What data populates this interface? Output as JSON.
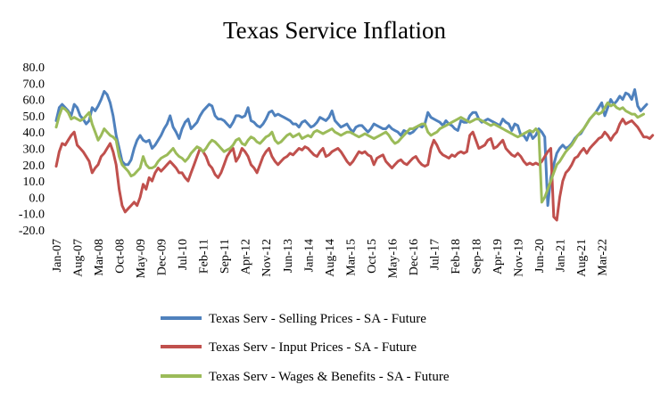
{
  "chart_data": {
    "type": "line",
    "title": "Texas Service Inflation",
    "xlabel": "",
    "ylabel": "",
    "ylim": [
      -20,
      80
    ],
    "yticks": [
      -20,
      -10,
      0,
      10,
      20,
      30,
      40,
      50,
      60,
      70,
      80
    ],
    "ytick_labels": [
      "-20.0",
      "-10.0",
      "0.0",
      "10.0",
      "20.0",
      "30.0",
      "40.0",
      "50.0",
      "60.0",
      "70.0",
      "80.0"
    ],
    "x_start": "Jan-07",
    "x_end": "Sep-22",
    "xtick_labels": [
      "Jan-07",
      "Aug-07",
      "Mar-08",
      "Oct-08",
      "May-09",
      "Dec-09",
      "Jul-10",
      "Feb-11",
      "Sep-11",
      "Apr-12",
      "Nov-12",
      "Jun-13",
      "Jan-14",
      "Aug-14",
      "Mar-15",
      "Oct-15",
      "May-16",
      "Dec-16",
      "Jul-17",
      "Feb-18",
      "Sep-18",
      "Apr-19",
      "Nov-19",
      "Jun-20",
      "Jan-21",
      "Aug-21",
      "Mar-22"
    ],
    "legend_position": "bottom",
    "series": [
      {
        "name": "Texas Serv - Selling Prices - SA - Future",
        "color": "#4F81BD",
        "values": [
          47,
          55,
          57,
          55,
          53,
          50,
          57,
          55,
          50,
          48,
          45,
          47,
          55,
          53,
          56,
          60,
          65,
          63,
          58,
          50,
          38,
          30,
          22,
          20,
          20,
          23,
          30,
          35,
          38,
          35,
          34,
          35,
          30,
          32,
          35,
          38,
          42,
          45,
          50,
          43,
          40,
          36,
          42,
          46,
          48,
          42,
          44,
          46,
          50,
          53,
          55,
          57,
          56,
          50,
          48,
          48,
          47,
          45,
          43,
          46,
          50,
          50,
          49,
          50,
          55,
          47,
          46,
          44,
          43,
          45,
          48,
          52,
          53,
          50,
          51,
          50,
          49,
          48,
          47,
          45,
          45,
          43,
          46,
          47,
          45,
          43,
          44,
          46,
          49,
          48,
          47,
          49,
          53,
          47,
          45,
          43,
          44,
          45,
          42,
          40,
          43,
          44,
          44,
          42,
          40,
          42,
          45,
          44,
          43,
          42,
          42,
          44,
          42,
          41,
          40,
          38,
          41,
          40,
          39,
          40,
          42,
          44,
          43,
          45,
          52,
          49,
          48,
          47,
          46,
          44,
          47,
          45,
          44,
          42,
          41,
          47,
          46,
          46,
          50,
          52,
          52,
          48,
          46,
          47,
          48,
          47,
          46,
          45,
          44,
          48,
          46,
          45,
          41,
          45,
          44,
          38,
          38,
          35,
          40,
          36,
          38,
          42,
          40,
          37,
          -5,
          12,
          20,
          27,
          30,
          32,
          30,
          31,
          33,
          36,
          38,
          39,
          42,
          45,
          48,
          50,
          52,
          55,
          58,
          50,
          55,
          60,
          57,
          59,
          62,
          60,
          64,
          63,
          60,
          66,
          56,
          53,
          55,
          57
        ]
      },
      {
        "name": "Texas Serv - Input Prices - SA - Future",
        "color": "#C0504D",
        "values": [
          19,
          28,
          33,
          32,
          35,
          38,
          40,
          32,
          30,
          28,
          25,
          22,
          15,
          18,
          20,
          25,
          27,
          30,
          33,
          28,
          20,
          5,
          -5,
          -9,
          -7,
          -5,
          -3,
          -5,
          0,
          8,
          5,
          12,
          10,
          15,
          18,
          16,
          18,
          20,
          22,
          20,
          18,
          15,
          15,
          12,
          10,
          15,
          20,
          25,
          30,
          28,
          25,
          20,
          18,
          14,
          12,
          15,
          20,
          25,
          28,
          30,
          22,
          25,
          30,
          28,
          25,
          20,
          18,
          15,
          20,
          25,
          28,
          30,
          25,
          22,
          20,
          22,
          24,
          25,
          27,
          26,
          28,
          30,
          29,
          31,
          30,
          28,
          26,
          25,
          28,
          30,
          25,
          26,
          28,
          29,
          30,
          28,
          25,
          22,
          20,
          22,
          25,
          28,
          27,
          28,
          26,
          25,
          20,
          24,
          25,
          26,
          22,
          20,
          18,
          20,
          22,
          23,
          21,
          20,
          22,
          24,
          25,
          22,
          20,
          19,
          20,
          30,
          35,
          32,
          28,
          26,
          25,
          24,
          26,
          25,
          27,
          28,
          27,
          28,
          38,
          40,
          35,
          30,
          31,
          32,
          35,
          36,
          30,
          31,
          33,
          35,
          30,
          28,
          26,
          25,
          27,
          25,
          22,
          20,
          21,
          20,
          21,
          20,
          22,
          25,
          28,
          30,
          -12,
          -14,
          0,
          10,
          15,
          17,
          20,
          24,
          25,
          28,
          30,
          27,
          30,
          32,
          34,
          36,
          37,
          40,
          38,
          35,
          38,
          40,
          45,
          48,
          45,
          46,
          47,
          45,
          43,
          40,
          37,
          37,
          36,
          38
        ]
      },
      {
        "name": "Texas Serv - Wages & Benefits - SA - Future",
        "color": "#9BBB59",
        "values": [
          43,
          50,
          55,
          54,
          52,
          48,
          49,
          48,
          47,
          48,
          50,
          52,
          45,
          40,
          35,
          38,
          42,
          40,
          38,
          37,
          35,
          25,
          20,
          18,
          16,
          13,
          14,
          16,
          18,
          25,
          20,
          18,
          18,
          19,
          22,
          24,
          25,
          26,
          28,
          30,
          27,
          25,
          24,
          22,
          24,
          27,
          29,
          31,
          30,
          28,
          30,
          33,
          35,
          34,
          32,
          30,
          28,
          29,
          30,
          32,
          35,
          36,
          33,
          32,
          35,
          37,
          36,
          34,
          33,
          35,
          37,
          38,
          40,
          35,
          33,
          34,
          36,
          38,
          39,
          37,
          38,
          39,
          36,
          37,
          38,
          37,
          40,
          41,
          40,
          39,
          40,
          41,
          42,
          40,
          39,
          38,
          39,
          40,
          40,
          39,
          38,
          37,
          38,
          39,
          38,
          37,
          36,
          37,
          38,
          39,
          40,
          38,
          35,
          33,
          34,
          36,
          38,
          40,
          42,
          42,
          43,
          44,
          45,
          45,
          40,
          38,
          39,
          40,
          42,
          43,
          44,
          45,
          46,
          47,
          48,
          49,
          48,
          47,
          46,
          47,
          48,
          48,
          47,
          46,
          45,
          44,
          45,
          44,
          43,
          42,
          41,
          40,
          39,
          38,
          37,
          38,
          39,
          40,
          41,
          40,
          42,
          40,
          -3,
          0,
          5,
          10,
          15,
          20,
          22,
          25,
          28,
          30,
          32,
          35,
          38,
          40,
          42,
          45,
          48,
          50,
          52,
          51,
          52,
          55,
          58,
          56,
          57,
          55,
          54,
          55,
          53,
          52,
          51,
          51,
          49,
          50,
          51
        ]
      }
    ]
  }
}
